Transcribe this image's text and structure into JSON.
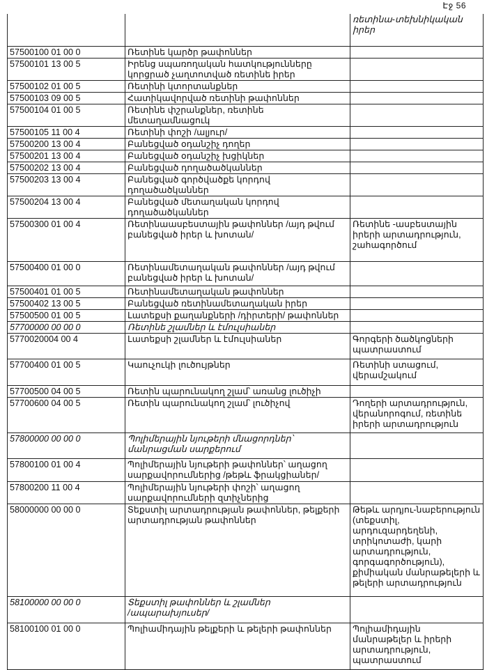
{
  "page_label": "Էջ 56",
  "header_note": "ռետինա-տեխնիկական\nիրեր",
  "rows": [
    {
      "code": "57500100 01 00 0",
      "name": "Ռետինե կարծր թափոններ",
      "note": ""
    },
    {
      "code": "57500101 13 00 5",
      "name": "Իրենց սպառողական հատկությունները\nկորցրած չաղտոտված ռետինե իրեր",
      "note": ""
    },
    {
      "code": "57500102 01 00 5",
      "name": "Ռետինի կտորտանքներ",
      "note": ""
    },
    {
      "code": "57500103 09 00 5",
      "name": "Հատիկավորված ռետինի թափոններ",
      "note": ""
    },
    {
      "code": "57500104 01 00 5",
      "name": "Ռետինե փշրանքներ, ռետինե\nմետաղամնացուկ",
      "note": ""
    },
    {
      "code": "57500105 11 00 4",
      "name": "Ռետինի փոշի /ալյուր/",
      "note": ""
    },
    {
      "code": "57500200 13 00 4",
      "name": "Բանեցված օդանշիչ դողեր",
      "note": ""
    },
    {
      "code": "57500201 13 00 4",
      "name": "Բանեցված օդանշիչ խցիկներ",
      "note": ""
    },
    {
      "code": "57500202 13 00 4",
      "name": "Բանեցված դողածածկաններ",
      "note": ""
    },
    {
      "code": "57500203 13 00 4",
      "name": "Բանեցված գործվածքե կորդով\nդողածածկաններ",
      "note": ""
    },
    {
      "code": "57500204 13 00 4",
      "name": "Բանեցված մետաղական կորդով\nդողածածկաններ",
      "note": ""
    },
    {
      "code": "57500300 01 00 4",
      "name": "Ռետինաասբեստային թափոններ /այդ թվում\nբանեցված իրեր և խոտան/",
      "note": "Ռետինե -ասբեստային\nիրերի արտադրություն,\nշահագործում"
    },
    {
      "code": "57500400 01 00 0",
      "name": "Ռետինամետաղական թափոններ /այդ թվում\nբանեցված իրեր և խոտան/",
      "note": ""
    },
    {
      "code": "57500401 01 00 5",
      "name": "Ռետինամետաղական թափոններ",
      "note": ""
    },
    {
      "code": "57500402 13 00 5",
      "name": "Բանեցված ռետինամետաղական իրեր",
      "note": ""
    },
    {
      "code": "57500500 01 00 5",
      "name": "Լատեքսի քաղանքների /դիրտերի/ թափոններ",
      "note": ""
    },
    {
      "code": "57700000 00 00 0",
      "name": "Ռետինե շլամներ և էմուլսիաներ",
      "note": "",
      "italic": true
    },
    {
      "code": " 5770020004 00 4",
      "name": "  Լատեքսի  շլամներ և էմուլսիաներ",
      "note": "Գորգերի ծածկոցների\nպատրաստում"
    },
    {
      "code": " 57700400 01 00 5",
      "name": "  Կաուչուկի լուծույթներ",
      "note": "Ռետինի ստացում,\nվերամշակում"
    },
    {
      "code": " 57700500 04 00 5",
      "name": "  Ռետին պարունակող շլամ՝ առանց լուծիչի",
      "note": ""
    },
    {
      "code": " 57700600 04 00 5",
      "name": "  Ռետին պարունակող շլամ՝  լուծիչով",
      "note": "Դողերի արտադրություն,\nվերանորոգում, ռետինե\nիրերի արտադրություն"
    },
    {
      "code": "57800000 00 00 0",
      "name": "Պոլիմերային նյութերի մնացորդներ՝\nմանրացման սարքերում",
      "note": "",
      "italic": true
    },
    {
      "code": "57800100 01 00 4",
      "name": "Պոլիմերային նյութերի թափոններ՝ աղացող\nսարքավորումներից /թեթև ֆրակցիաներ/",
      "note": ""
    },
    {
      "code": "57800200 11 00 4",
      "name": "Պոլիմերային նյութերի փոշի՝ աղացող\nսարքավորումների զտիչներից",
      "note": ""
    },
    {
      "code": "58000000 00 00 0",
      "name": "Տեքստիլ արտադրության թափոններ, թելքերի\nարտադրության թափոններ",
      "note": "Թեթև արդյու-նաբերություն\n(տեքստիլ,\nարդուզարդեղենի,\nտրիկոտաժի, կարի\nարտադրություն,\nգորգագործություն),\nքիմիական մանրաթելերի և\nթելերի արտադրություն"
    },
    {
      "code": "58100000 00 00 0",
      "name": "Տեքստիլ թափոններ և շլամներ\n/ապարախյուսեր/",
      "note": "",
      "italic": true
    },
    {
      "code": "58100100 01 00 0",
      "name": "Պոլիամիդային թելքերի և թելերի թափոններ",
      "note": "Պոլիամիդային\nմանրաթելեր և իրերի\nարտադրություն,\nպատրաստում"
    }
  ]
}
